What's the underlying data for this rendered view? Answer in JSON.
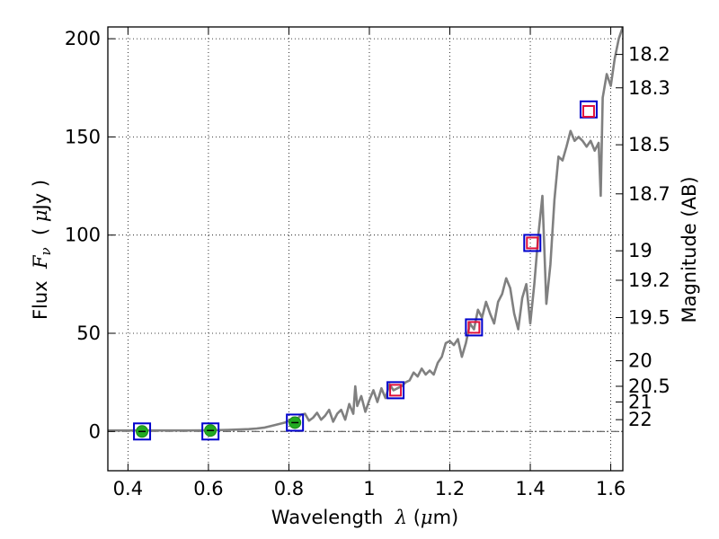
{
  "chart_data": {
    "type": "line",
    "xlabel": "Wavelength  λ (μm)",
    "xlabel_parts": {
      "prefix": "Wavelength  ",
      "lambda": "λ",
      "unit_open": " (",
      "mu": "μ",
      "unit_close": "m)"
    },
    "ylabel_left": "Flux  Fν  ( μJy )",
    "ylabel_left_parts": {
      "flux": "Flux  ",
      "F": "F",
      "nu": "ν",
      "unit_open": "  ( ",
      "mu": "μ",
      "unit_close": "Jy )"
    },
    "ylabel_right": "Magnitude (AB)",
    "xlim": [
      0.35,
      1.63
    ],
    "ylim": [
      -20,
      206
    ],
    "x_ticks": [
      0.4,
      0.6,
      0.8,
      1.0,
      1.2,
      1.4,
      1.6
    ],
    "x_tick_labels": [
      "0.4",
      "0.6",
      "0.8",
      "1",
      "1.2",
      "1.4",
      "1.6"
    ],
    "y_ticks": [
      0,
      50,
      100,
      150,
      200
    ],
    "y_tick_labels": [
      "0",
      "50",
      "100",
      "150",
      "200"
    ],
    "right_axis_ticks": [
      {
        "label": "18.2",
        "flux": 192
      },
      {
        "label": "18.3",
        "flux": 175
      },
      {
        "label": "18.5",
        "flux": 146
      },
      {
        "label": "18.7",
        "flux": 121
      },
      {
        "label": "19",
        "flux": 92
      },
      {
        "label": "19.2",
        "flux": 77
      },
      {
        "label": "19.5",
        "flux": 58
      },
      {
        "label": "20",
        "flux": 36
      },
      {
        "label": "20.5",
        "flux": 23
      },
      {
        "label": "21",
        "flux": 15
      },
      {
        "label": "22",
        "flux": 6
      }
    ],
    "grid": true,
    "zero_line": true,
    "series": [
      {
        "name": "model spectrum",
        "style": "line",
        "color": "#808080",
        "x": [
          0.35,
          0.4,
          0.45,
          0.5,
          0.55,
          0.6,
          0.65,
          0.7,
          0.72,
          0.74,
          0.76,
          0.78,
          0.79,
          0.8,
          0.81,
          0.82,
          0.83,
          0.84,
          0.85,
          0.86,
          0.87,
          0.88,
          0.89,
          0.9,
          0.91,
          0.92,
          0.93,
          0.94,
          0.95,
          0.96,
          0.965,
          0.97,
          0.98,
          0.99,
          1.0,
          1.01,
          1.02,
          1.03,
          1.04,
          1.05,
          1.06,
          1.07,
          1.08,
          1.09,
          1.1,
          1.11,
          1.12,
          1.13,
          1.14,
          1.15,
          1.16,
          1.17,
          1.18,
          1.19,
          1.2,
          1.21,
          1.22,
          1.23,
          1.24,
          1.25,
          1.26,
          1.27,
          1.28,
          1.29,
          1.3,
          1.31,
          1.32,
          1.33,
          1.34,
          1.35,
          1.36,
          1.37,
          1.38,
          1.39,
          1.4,
          1.41,
          1.42,
          1.43,
          1.44,
          1.45,
          1.46,
          1.47,
          1.48,
          1.49,
          1.5,
          1.51,
          1.52,
          1.53,
          1.54,
          1.55,
          1.56,
          1.57,
          1.575,
          1.58,
          1.59,
          1.6,
          1.61,
          1.62,
          1.63
        ],
        "y": [
          0.5,
          0.5,
          0.5,
          0.5,
          0.5,
          0.6,
          0.8,
          1.2,
          1.5,
          2.0,
          3.0,
          4.0,
          4.5,
          5.5,
          7.0,
          6.0,
          8.5,
          9.0,
          5.5,
          7.0,
          9.5,
          6.0,
          8.0,
          11.0,
          5.0,
          9.0,
          11.0,
          6.0,
          14.0,
          9.0,
          23.0,
          13.0,
          18.0,
          10.0,
          16.0,
          21.0,
          15.0,
          22.0,
          17.0,
          24.0,
          21.0,
          22.0,
          23.0,
          25.0,
          26.0,
          30.0,
          28.0,
          32.0,
          29.0,
          31.0,
          29.0,
          35.0,
          38.0,
          45.0,
          46.0,
          44.0,
          47.0,
          38.0,
          45.0,
          55.0,
          52.0,
          62.0,
          58.0,
          66.0,
          60.0,
          55.0,
          66.0,
          70.0,
          78.0,
          73.0,
          60.0,
          52.0,
          68.0,
          75.0,
          55.0,
          75.0,
          100.0,
          120.0,
          65.0,
          85.0,
          118.0,
          140.0,
          138.0,
          145.0,
          153.0,
          148.0,
          150.0,
          148.0,
          145.0,
          148.0,
          143.0,
          147.0,
          120.0,
          170.0,
          182.0,
          176.0,
          190.0,
          200.0,
          206.0
        ]
      },
      {
        "name": "photometry blue squares",
        "style": "marker",
        "marker": "square",
        "color": "#0000cc",
        "x": [
          0.435,
          0.605,
          0.815,
          1.065,
          1.26,
          1.405,
          1.545
        ],
        "y": [
          0,
          0,
          4.5,
          21,
          53,
          96,
          164
        ]
      },
      {
        "name": "model photometry red squares",
        "style": "marker",
        "marker": "square",
        "color": "#e0103a",
        "x": [
          1.065,
          1.26,
          1.405,
          1.545
        ],
        "y": [
          21,
          53,
          96,
          163
        ]
      },
      {
        "name": "observed green points",
        "style": "marker",
        "marker": "circle",
        "color": "#22aa22",
        "x": [
          0.435,
          0.605,
          0.815
        ],
        "y": [
          0,
          0.5,
          4.5
        ]
      }
    ]
  }
}
